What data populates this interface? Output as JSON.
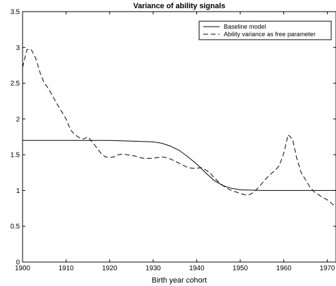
{
  "chart_data": {
    "type": "line",
    "title": "Variance of ability signals",
    "xlabel": "Birth year cohort",
    "ylabel": "",
    "xlim": [
      1900,
      1972
    ],
    "ylim": [
      0,
      3.5
    ],
    "xticks": [
      1900,
      1910,
      1920,
      1930,
      1940,
      1950,
      1960,
      1970
    ],
    "xtick_labels": [
      "1900",
      "1910",
      "1920",
      "1930",
      "1940",
      "1950",
      "1960",
      "1970"
    ],
    "yticks": [
      0,
      0.5,
      1,
      1.5,
      2,
      2.5,
      3,
      3.5
    ],
    "ytick_labels": [
      "0",
      "0.5",
      "1",
      "1.5",
      "2",
      "2.5",
      "3",
      "3.5"
    ],
    "grid": false,
    "legend_position": "top-right",
    "series": [
      {
        "name": "Baseline model",
        "style": "solid",
        "color": "#000000",
        "x": [
          1900,
          1905,
          1910,
          1915,
          1920,
          1925,
          1930,
          1932,
          1934,
          1936,
          1938,
          1940,
          1942,
          1944,
          1946,
          1948,
          1950,
          1955,
          1960,
          1965,
          1972
        ],
        "y": [
          1.7,
          1.7,
          1.7,
          1.7,
          1.7,
          1.69,
          1.68,
          1.66,
          1.62,
          1.56,
          1.47,
          1.37,
          1.25,
          1.14,
          1.07,
          1.03,
          1.01,
          1.0,
          1.0,
          1.0,
          1.0
        ]
      },
      {
        "name": "Ability variance as free parameter",
        "style": "dashed",
        "color": "#000000",
        "x": [
          1900,
          1901,
          1902,
          1903,
          1904,
          1905,
          1906,
          1908,
          1910,
          1911,
          1912,
          1913,
          1914,
          1915,
          1916,
          1917,
          1918,
          1919,
          1920,
          1921,
          1922,
          1923,
          1924,
          1925,
          1926,
          1927,
          1928,
          1929,
          1930,
          1931,
          1932,
          1933,
          1934,
          1935,
          1936,
          1937,
          1938,
          1939,
          1940,
          1941,
          1942,
          1943,
          1944,
          1945,
          1946,
          1947,
          1948,
          1949,
          1950,
          1951,
          1952,
          1953,
          1954,
          1955,
          1956,
          1957,
          1958,
          1959,
          1960,
          1961,
          1962,
          1963,
          1964,
          1965,
          1966,
          1967,
          1968,
          1969,
          1970,
          1971,
          1972
        ],
        "y": [
          2.72,
          2.97,
          2.97,
          2.85,
          2.65,
          2.5,
          2.42,
          2.2,
          2.0,
          1.85,
          1.78,
          1.74,
          1.72,
          1.75,
          1.68,
          1.6,
          1.52,
          1.47,
          1.46,
          1.47,
          1.5,
          1.51,
          1.5,
          1.49,
          1.48,
          1.46,
          1.45,
          1.45,
          1.45,
          1.46,
          1.47,
          1.46,
          1.44,
          1.41,
          1.38,
          1.35,
          1.32,
          1.31,
          1.31,
          1.32,
          1.29,
          1.25,
          1.18,
          1.12,
          1.07,
          1.03,
          1.0,
          0.98,
          0.96,
          0.94,
          0.94,
          0.97,
          1.03,
          1.1,
          1.17,
          1.23,
          1.28,
          1.35,
          1.52,
          1.78,
          1.72,
          1.45,
          1.25,
          1.15,
          1.05,
          0.98,
          0.94,
          0.9,
          0.87,
          0.82,
          0.77
        ]
      }
    ]
  }
}
